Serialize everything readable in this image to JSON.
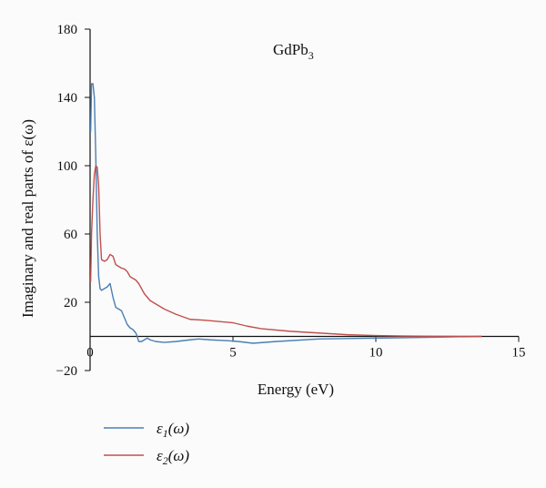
{
  "chart_data": {
    "type": "line",
    "title": "",
    "annotation": {
      "text": "GdPb",
      "subscript": "3"
    },
    "xlabel": "Energy (eV)",
    "ylabel": "Imaginary and real parts of ε(ω)",
    "xlim": [
      0,
      15
    ],
    "ylim": [
      -20,
      180
    ],
    "x_ticks": [
      0,
      5,
      10,
      15
    ],
    "y_ticks": [
      -20,
      20,
      60,
      100,
      140,
      180
    ],
    "grid": false,
    "legend_position": "bottom-left, below plot",
    "series": [
      {
        "name": "ε1(ω)",
        "name_main": "ε",
        "name_sub": "1",
        "name_arg": "(ω)",
        "color": "#4a7fb5",
        "x": [
          0.02,
          0.05,
          0.1,
          0.15,
          0.2,
          0.25,
          0.3,
          0.35,
          0.4,
          0.5,
          0.6,
          0.7,
          0.8,
          0.9,
          1.0,
          1.1,
          1.2,
          1.3,
          1.4,
          1.5,
          1.6,
          1.65,
          1.7,
          1.75,
          1.8,
          1.9,
          2.0,
          2.1,
          2.3,
          2.6,
          3.0,
          3.5,
          3.8,
          4.2,
          4.8,
          5.2,
          5.7,
          6.5,
          8.0,
          10.0,
          12.0,
          13.7
        ],
        "y": [
          120,
          148,
          148,
          140,
          105,
          60,
          35,
          28,
          27,
          28,
          29,
          31,
          23,
          17,
          16,
          15,
          11,
          7,
          5,
          4,
          2,
          0,
          -3,
          -3,
          -3,
          -2,
          -1,
          -2,
          -3,
          -3.5,
          -3,
          -2,
          -1.5,
          -2,
          -2.5,
          -3,
          -4,
          -3,
          -1.5,
          -1,
          -0.5,
          0
        ]
      },
      {
        "name": "ε2(ω)",
        "name_main": "ε",
        "name_sub": "2",
        "name_arg": "(ω)",
        "color": "#c0504d",
        "x": [
          0.02,
          0.05,
          0.1,
          0.15,
          0.2,
          0.25,
          0.3,
          0.35,
          0.4,
          0.5,
          0.6,
          0.7,
          0.8,
          0.9,
          1.0,
          1.1,
          1.2,
          1.3,
          1.4,
          1.5,
          1.6,
          1.7,
          1.8,
          1.9,
          2.0,
          2.1,
          2.3,
          2.6,
          3.0,
          3.5,
          4.0,
          5.0,
          5.5,
          6.0,
          7.0,
          8.0,
          9.0,
          10.0,
          11.0,
          12.0,
          13.0,
          13.7
        ],
        "y": [
          32,
          60,
          80,
          95,
          100,
          99,
          88,
          60,
          45,
          44,
          45,
          48,
          47,
          42,
          41,
          40,
          39.5,
          38,
          35,
          34,
          33,
          31,
          28,
          25,
          23,
          21,
          19,
          16,
          13,
          10,
          9.5,
          8,
          6,
          4.5,
          3,
          2,
          1,
          0.5,
          0.2,
          0.1,
          0,
          0
        ]
      }
    ]
  }
}
